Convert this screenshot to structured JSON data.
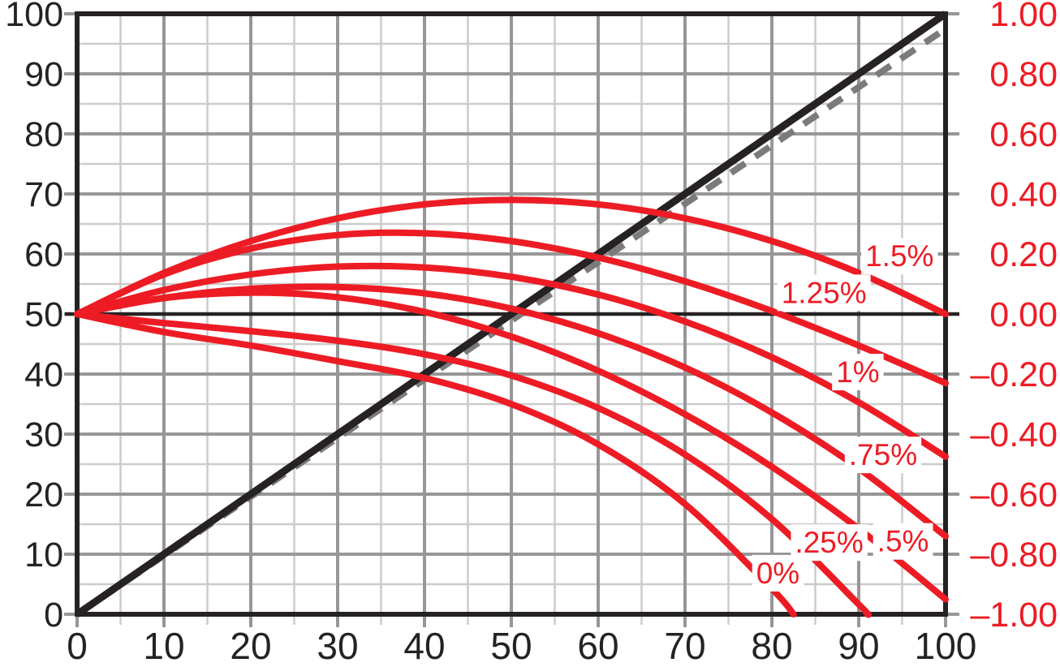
{
  "chart_data": {
    "type": "line",
    "title": "",
    "x_axis": {
      "min": 0,
      "max": 100,
      "major_tick_step": 10,
      "minor_tick_step": 5,
      "tick_values": [
        0,
        10,
        20,
        30,
        40,
        50,
        60,
        70,
        80,
        90,
        100
      ],
      "tick_labels": [
        "0",
        "10",
        "20",
        "30",
        "40",
        "50",
        "60",
        "70",
        "80",
        "90",
        "100"
      ]
    },
    "y_left_axis": {
      "min": 0,
      "max": 100,
      "major_tick_step": 10,
      "minor_tick_step": 5,
      "tick_values": [
        0,
        10,
        20,
        30,
        40,
        50,
        60,
        70,
        80,
        90,
        100
      ],
      "tick_labels": [
        "0",
        "10",
        "20",
        "30",
        "40",
        "50",
        "60",
        "70",
        "80",
        "90",
        "100"
      ]
    },
    "y_right_axis": {
      "min": -1.0,
      "max": 1.0,
      "tick_values": [
        1.0,
        0.8,
        0.6,
        0.4,
        0.2,
        0.0,
        -0.2,
        -0.4,
        -0.6,
        -0.8,
        -1.0
      ],
      "tick_labels": [
        "1.00",
        "0.80",
        "0.60",
        "0.40",
        "0.20",
        "0.00",
        "–0.20",
        "–0.40",
        "–0.60",
        "–0.80",
        "–1.00"
      ]
    },
    "grid": {
      "major": true,
      "minor": true
    },
    "legend": "none",
    "reference_lines": [
      {
        "name": "identity-diagonal",
        "style": "solid",
        "color_role": "black",
        "points": [
          [
            0,
            0
          ],
          [
            100,
            100
          ]
        ]
      },
      {
        "name": "near-identity-dashed",
        "style": "dashed",
        "color_role": "dashed_gray",
        "points": [
          [
            0,
            0
          ],
          [
            50,
            48.9
          ],
          [
            100,
            97.5
          ]
        ]
      },
      {
        "name": "midline-50",
        "style": "solid",
        "color_role": "black",
        "points": [
          [
            0,
            50
          ],
          [
            100,
            50
          ]
        ]
      }
    ],
    "series": [
      {
        "label": "1.5%",
        "points_x": [
          0,
          10,
          20,
          30,
          40,
          50,
          60,
          70,
          80,
          90,
          100
        ],
        "points_r": [
          0,
          0.137,
          0.243,
          0.319,
          0.365,
          0.38,
          0.365,
          0.319,
          0.243,
          0.137,
          0
        ],
        "label_pos": {
          "x": 94.7,
          "y": 59.7
        }
      },
      {
        "label": "1.25%",
        "points_x": [
          0,
          10,
          20,
          30,
          40,
          50,
          60,
          70,
          80,
          90,
          100
        ],
        "points_r": [
          0,
          0.132,
          0.218,
          0.263,
          0.269,
          0.243,
          0.188,
          0.109,
          0.01,
          -0.105,
          -0.23
        ],
        "label_pos": {
          "x": 86.0,
          "y": 53.6
        }
      },
      {
        "label": "1%",
        "points_x": [
          0,
          10,
          20,
          30,
          40,
          50,
          60,
          70,
          80,
          90,
          100
        ],
        "points_r": [
          0,
          0.08,
          0.132,
          0.158,
          0.155,
          0.124,
          0.065,
          -0.025,
          -0.144,
          -0.294,
          -0.475
        ],
        "label_pos": {
          "x": 89.9,
          "y": 40.4
        }
      },
      {
        "label": ".75%",
        "points_x": [
          0,
          10,
          20,
          30,
          40,
          50,
          60,
          70,
          80,
          90,
          100
        ],
        "points_r": [
          0,
          0.054,
          0.084,
          0.09,
          0.069,
          0.018,
          -0.064,
          -0.178,
          -0.328,
          -0.514,
          -0.74
        ],
        "label_pos": {
          "x": 92.8,
          "y": 26.6
        }
      },
      {
        "label": ".5%",
        "points_x": [
          0,
          10,
          20,
          30,
          40,
          50,
          60,
          70,
          80,
          90,
          100
        ],
        "points_r": [
          0,
          0.053,
          0.071,
          0.056,
          0.007,
          -0.075,
          -0.189,
          -0.334,
          -0.509,
          -0.715,
          -0.95
        ],
        "label_pos": {
          "x": 95.1,
          "y": 12.2
        }
      },
      {
        "label": ".25%",
        "points_x": [
          0,
          10,
          20,
          30,
          40,
          50,
          60,
          70,
          80,
          90,
          91
        ],
        "points_r": [
          0,
          -0.03,
          -0.057,
          -0.089,
          -0.134,
          -0.205,
          -0.313,
          -0.468,
          -0.683,
          -0.967,
          -1.0
        ],
        "label_pos": {
          "x": 86.6,
          "y": 12.0
        }
      },
      {
        "label": "0%",
        "points_x": [
          0,
          10,
          20,
          30,
          40,
          50,
          60,
          70,
          80,
          82.5
        ],
        "points_r": [
          0,
          -0.06,
          -0.105,
          -0.157,
          -0.213,
          -0.3,
          -0.434,
          -0.633,
          -0.915,
          -1.0
        ],
        "label_pos": {
          "x": 80.7,
          "y": 6.9
        }
      }
    ]
  },
  "colors": {
    "curve_red": "#ed1c24",
    "line_black": "#262223",
    "grid_major": "#979797",
    "grid_minor": "#cccccc",
    "dashed_gray": "#7b7b7b",
    "axis_text_black": "#262223",
    "axis_text_red": "#ed1c24",
    "background": "#ffffff",
    "label_halo": "#ffffff"
  }
}
